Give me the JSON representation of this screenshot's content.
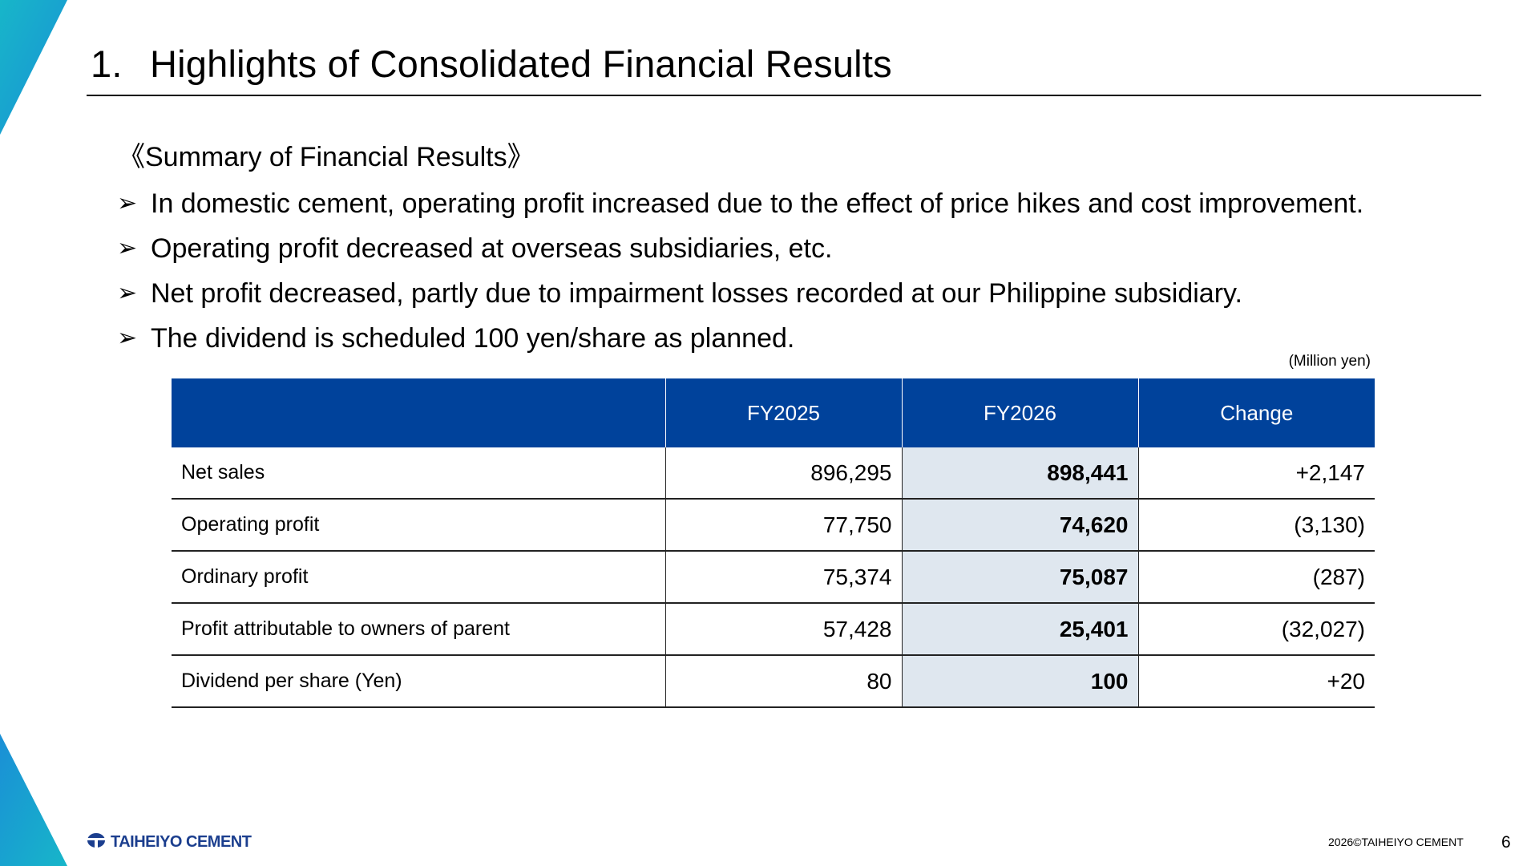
{
  "slide": {
    "title_number": "1.",
    "title_text": "Highlights of Consolidated Financial Results",
    "summary_heading": "《Summary of Financial Results》",
    "bullet_glyph": "➢",
    "bullets": [
      "In domestic cement, operating profit increased due to the effect of price hikes and cost improvement.",
      "Operating profit decreased at overseas subsidiaries, etc.",
      "Net profit decreased, partly due to impairment losses recorded at our Philippine subsidiary.",
      "The dividend is scheduled 100 yen/share as planned."
    ],
    "unit_note": "(Million yen)"
  },
  "table": {
    "headers": [
      "",
      "FY2025",
      "FY2026",
      "Change"
    ],
    "rows": [
      {
        "label": "Net sales",
        "fy2025": "896,295",
        "fy2026": "898,441",
        "change": "+2,147"
      },
      {
        "label": "Operating profit",
        "fy2025": "77,750",
        "fy2026": "74,620",
        "change": "(3,130)"
      },
      {
        "label": "Ordinary profit",
        "fy2025": "75,374",
        "fy2026": "75,087",
        "change": "(287)"
      },
      {
        "label": "Profit attributable to owners of parent",
        "fy2025": "57,428",
        "fy2026": "25,401",
        "change": "(32,027)"
      },
      {
        "label": "Dividend per share (Yen)",
        "fy2025": "80",
        "fy2026": "100",
        "change": "+20"
      }
    ]
  },
  "footer": {
    "logo_text": "TAIHEIYO CEMENT",
    "copyright": "2026©TAIHEIYO CEMENT",
    "page_number": "6"
  },
  "colors": {
    "header_blue": "#00429B",
    "highlight_cell": "#DFE7EF",
    "accent_cyan": "#1AA0D8",
    "logo_blue": "#1B3E8E"
  },
  "icons": [
    "corner-triangle-top",
    "corner-triangle-bottom",
    "company-logo-icon",
    "bullet-arrow-icon"
  ]
}
